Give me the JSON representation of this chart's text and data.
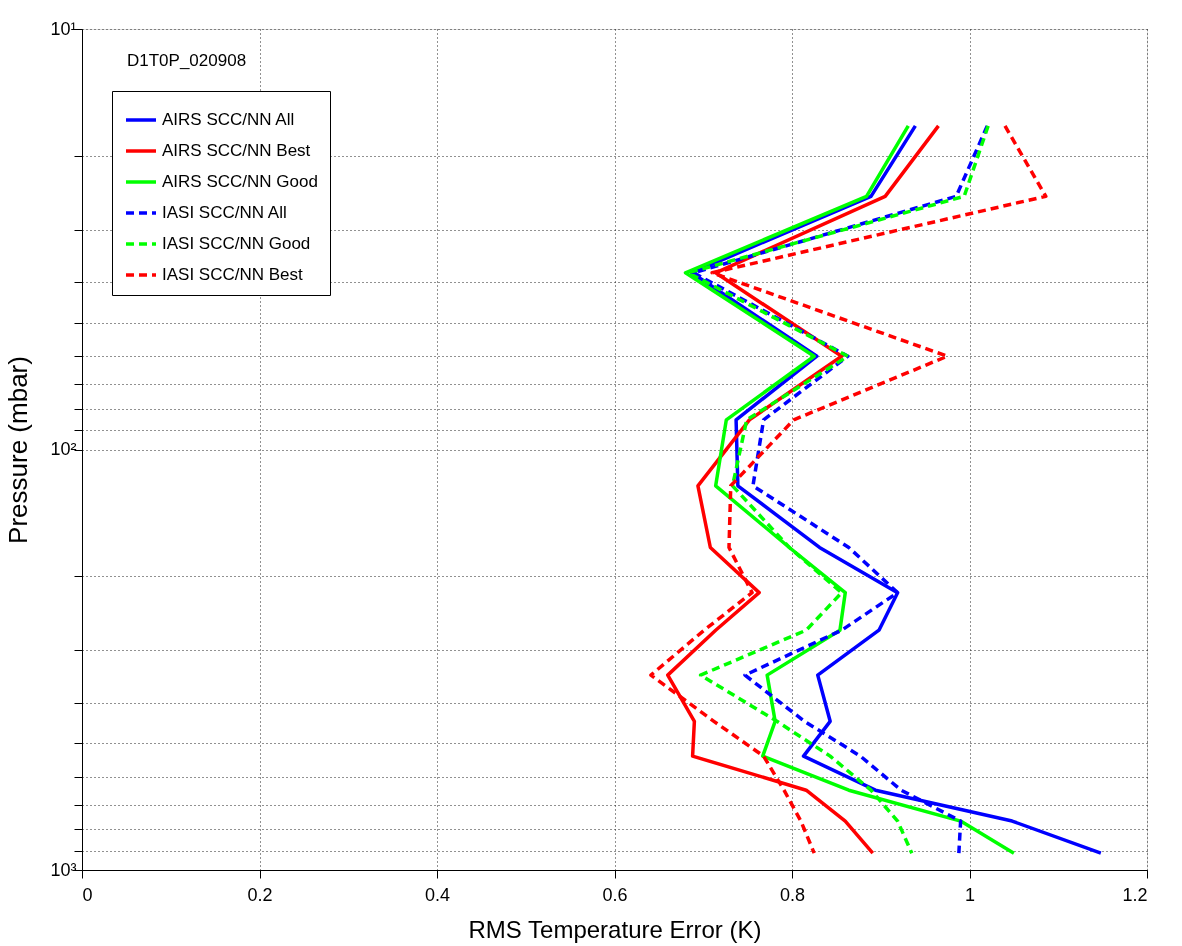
{
  "chart_data": {
    "type": "line",
    "xlabel": "RMS Temperature Error (K)",
    "ylabel": "Pressure (mbar)",
    "annotations": [
      "D1T0P_020908"
    ],
    "xlim": [
      0,
      1.2
    ],
    "xticks": [
      0,
      0.2,
      0.4,
      0.6,
      0.8,
      1,
      1.2
    ],
    "ylim": [
      1000,
      10
    ],
    "yticks": [
      {
        "value": 10,
        "label": "10¹"
      },
      {
        "value": 20,
        "label": null
      },
      {
        "value": 30,
        "label": null
      },
      {
        "value": 40,
        "label": null
      },
      {
        "value": 50,
        "label": null
      },
      {
        "value": 60,
        "label": null
      },
      {
        "value": 70,
        "label": null
      },
      {
        "value": 80,
        "label": null
      },
      {
        "value": 90,
        "label": null
      },
      {
        "value": 100,
        "label": "10²"
      },
      {
        "value": 200,
        "label": null
      },
      {
        "value": 300,
        "label": null
      },
      {
        "value": 400,
        "label": null
      },
      {
        "value": 500,
        "label": null
      },
      {
        "value": 600,
        "label": null
      },
      {
        "value": 700,
        "label": null
      },
      {
        "value": 800,
        "label": null
      },
      {
        "value": 900,
        "label": null
      },
      {
        "value": 1000,
        "label": "10³"
      }
    ],
    "log": "y",
    "grid": true,
    "legend": "top left",
    "marker": "none",
    "series": [
      {
        "name": "AIRS SCC/NN All",
        "color": "#0000ff",
        "line_style": "solid",
        "x": [
          0.939,
          0.889,
          0.687,
          0.828,
          0.737,
          0.739,
          0.831,
          0.919,
          0.898,
          0.829,
          0.843,
          0.813,
          0.894,
          1.048,
          1.148
        ],
        "values": [
          17,
          25,
          38,
          60,
          85,
          122,
          171,
          219,
          269,
          344,
          443,
          536,
          646,
          765,
          912
        ]
      },
      {
        "name": "AIRS SCC/NN Best",
        "color": "#ff0000",
        "line_style": "solid",
        "x": [
          0.965,
          0.905,
          0.714,
          0.856,
          0.752,
          0.694,
          0.708,
          0.763,
          0.714,
          0.66,
          0.69,
          0.688,
          0.816,
          0.86,
          0.891
        ],
        "values": [
          17,
          25,
          38,
          60,
          85,
          122,
          171,
          219,
          269,
          344,
          443,
          536,
          646,
          765,
          912
        ]
      },
      {
        "name": "AIRS SCC/NN Good",
        "color": "#00ff00",
        "line_style": "solid",
        "x": [
          0.931,
          0.884,
          0.68,
          0.825,
          0.726,
          0.714,
          0.797,
          0.86,
          0.854,
          0.772,
          0.781,
          0.767,
          0.864,
          0.99,
          1.05
        ],
        "values": [
          17,
          25,
          38,
          60,
          85,
          122,
          171,
          219,
          269,
          344,
          443,
          536,
          646,
          765,
          912
        ]
      },
      {
        "name": "IASI SCC/NN All",
        "color": "#0000ff",
        "line_style": "dashed",
        "x": [
          1.02,
          0.985,
          0.689,
          0.863,
          0.768,
          0.756,
          0.864,
          0.919,
          0.856,
          0.747,
          0.814,
          0.877,
          0.923,
          0.99,
          0.988
        ],
        "values": [
          17,
          25,
          38,
          60,
          85,
          122,
          171,
          219,
          269,
          344,
          443,
          536,
          646,
          765,
          912
        ]
      },
      {
        "name": "IASI SCC/NN Good",
        "color": "#00ff00",
        "line_style": "dashed",
        "x": [
          1.021,
          0.994,
          0.683,
          0.863,
          0.749,
          0.733,
          0.797,
          0.856,
          0.816,
          0.697,
          0.783,
          0.843,
          0.889,
          0.919,
          0.935
        ],
        "values": [
          17,
          25,
          38,
          60,
          85,
          122,
          171,
          219,
          269,
          344,
          443,
          536,
          646,
          765,
          912
        ]
      },
      {
        "name": "IASI SCC/NN Best",
        "color": "#ff0000",
        "line_style": "dashed",
        "x": [
          1.04,
          1.086,
          0.71,
          0.975,
          0.802,
          0.731,
          0.729,
          0.755,
          0.701,
          0.641,
          0.712,
          0.768,
          0.791,
          0.81,
          0.825
        ],
        "values": [
          17,
          25,
          38,
          60,
          85,
          122,
          171,
          219,
          269,
          344,
          443,
          536,
          646,
          765,
          912
        ]
      }
    ]
  }
}
